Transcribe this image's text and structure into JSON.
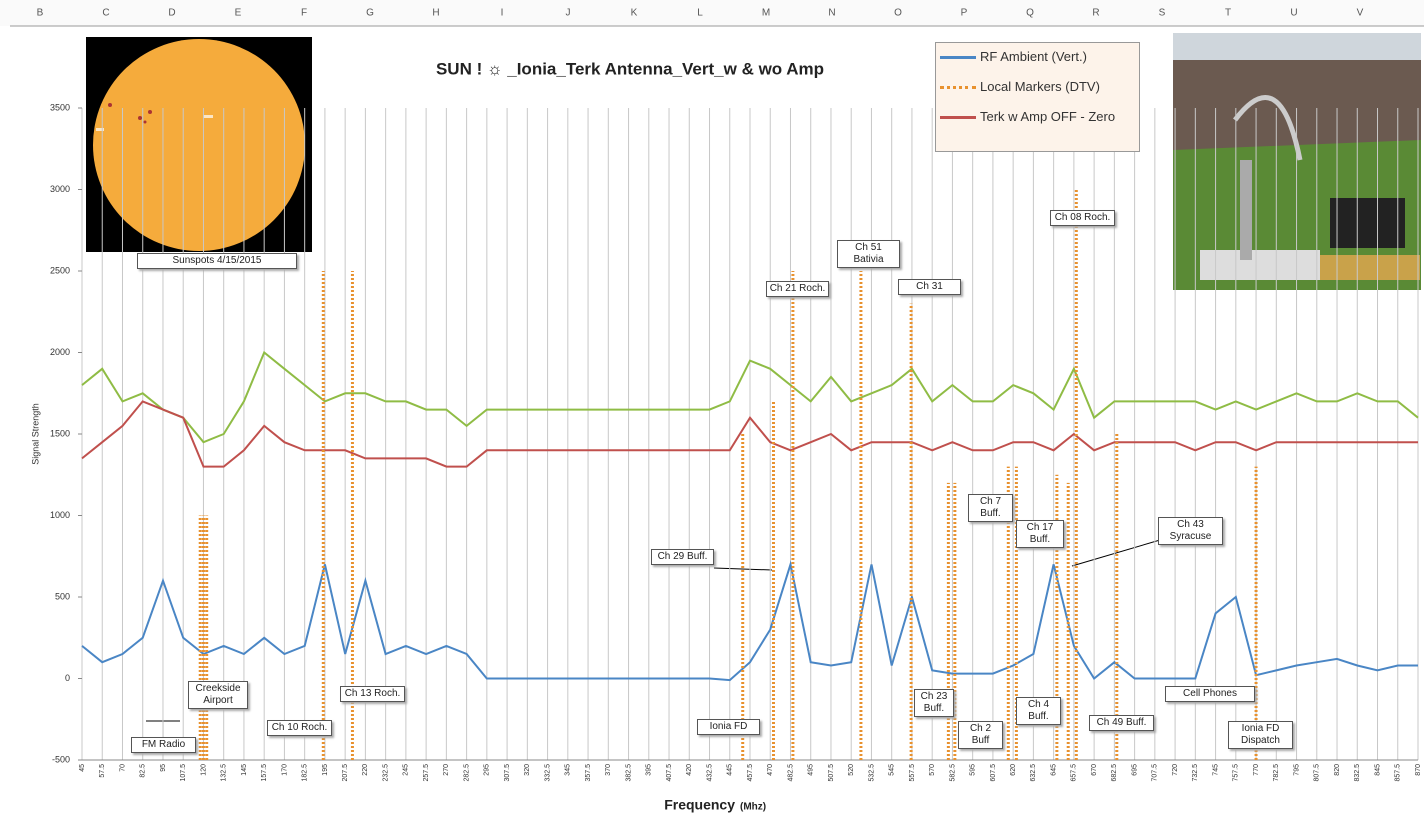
{
  "columns": [
    "B",
    "C",
    "D",
    "E",
    "F",
    "G",
    "H",
    "I",
    "J",
    "K",
    "L",
    "M",
    "N",
    "O",
    "P",
    "Q",
    "R",
    "S",
    "T",
    "U",
    "V"
  ],
  "chart_data": {
    "type": "line",
    "title": "SUN ! ☼ _Ionia_Terk Antenna_Vert_w & wo Amp",
    "ylabel": "Signal Strength",
    "xlabel": "Frequency",
    "xlabel_unit": "(Mhz)",
    "xlim": [
      45,
      870
    ],
    "ylim": [
      -500,
      3500
    ],
    "yticks": [
      -500,
      0,
      500,
      1000,
      1500,
      2000,
      2500,
      3000,
      3500
    ],
    "xticks": [
      45,
      57.5,
      70,
      82.5,
      95,
      107.5,
      120,
      132.5,
      145,
      157.5,
      170,
      182.5,
      195,
      207.5,
      220,
      232.5,
      245,
      257.5,
      270,
      282.5,
      295,
      307.5,
      320,
      332.5,
      345,
      357.5,
      370,
      382.5,
      395,
      407.5,
      420,
      432.5,
      445,
      457.5,
      470,
      482.5,
      495,
      507.5,
      520,
      532.5,
      545,
      557.5,
      570,
      582.5,
      595,
      607.5,
      620,
      632.5,
      645,
      657.5,
      670,
      682.5,
      695,
      707.5,
      720,
      732.5,
      745,
      757.5,
      770,
      782.5,
      795,
      807.5,
      820,
      832.5,
      845,
      857.5,
      870
    ],
    "grid": "x",
    "x": [
      45,
      57.5,
      70,
      82.5,
      95,
      107.5,
      120,
      132.5,
      145,
      157.5,
      170,
      182.5,
      195,
      207.5,
      220,
      232.5,
      245,
      257.5,
      270,
      282.5,
      295,
      307.5,
      320,
      332.5,
      345,
      357.5,
      370,
      382.5,
      395,
      407.5,
      420,
      432.5,
      445,
      457.5,
      470,
      482.5,
      495,
      507.5,
      520,
      532.5,
      545,
      557.5,
      570,
      582.5,
      595,
      607.5,
      620,
      632.5,
      645,
      657.5,
      670,
      682.5,
      695,
      707.5,
      720,
      732.5,
      745,
      757.5,
      770,
      782.5,
      795,
      807.5,
      820,
      832.5,
      845,
      857.5,
      870
    ],
    "series": [
      {
        "name": "RF Ambient (Vert.)",
        "color": "#4a86c5",
        "values": [
          200,
          100,
          150,
          250,
          600,
          250,
          150,
          200,
          150,
          250,
          150,
          200,
          700,
          150,
          600,
          150,
          200,
          150,
          200,
          150,
          0,
          0,
          0,
          0,
          0,
          0,
          0,
          0,
          0,
          0,
          0,
          0,
          -10,
          100,
          300,
          700,
          100,
          80,
          100,
          700,
          80,
          500,
          50,
          30,
          30,
          30,
          80,
          150,
          700,
          200,
          0,
          100,
          0,
          0,
          0,
          0,
          400,
          500,
          20,
          50,
          80,
          100,
          120,
          80,
          50,
          80,
          80
        ]
      },
      {
        "name": "Local Markers (DTV)",
        "color": "#e8912e",
        "dashed": true,
        "x": [
          118,
          120,
          122,
          194,
          212,
          453,
          472,
          484,
          526,
          557,
          580,
          584,
          617,
          622,
          647,
          654,
          659,
          684,
          770
        ],
        "values": [
          1000,
          1000,
          1000,
          2500,
          2500,
          1500,
          1700,
          2500,
          2500,
          2300,
          1200,
          1200,
          1300,
          1300,
          1250,
          1200,
          3000,
          1500,
          1300
        ]
      },
      {
        "name": "Terk w Amp OFF - Zero",
        "color": "#c0504d",
        "values": [
          1350,
          1450,
          1550,
          1700,
          1650,
          1600,
          1300,
          1300,
          1400,
          1550,
          1450,
          1400,
          1400,
          1400,
          1350,
          1350,
          1350,
          1350,
          1300,
          1300,
          1400,
          1400,
          1400,
          1400,
          1400,
          1400,
          1400,
          1400,
          1400,
          1400,
          1400,
          1400,
          1400,
          1600,
          1450,
          1400,
          1450,
          1500,
          1400,
          1450,
          1450,
          1450,
          1400,
          1450,
          1400,
          1400,
          1450,
          1450,
          1400,
          1500,
          1400,
          1450,
          1450,
          1450,
          1450,
          1400,
          1450,
          1450,
          1400,
          1450,
          1450,
          1450,
          1450,
          1450,
          1450,
          1450,
          1450
        ]
      },
      {
        "color": "#8fbc45",
        "values": [
          1800,
          1900,
          1700,
          1750,
          1650,
          1600,
          1450,
          1500,
          1700,
          2000,
          1900,
          1800,
          1700,
          1750,
          1750,
          1700,
          1700,
          1650,
          1650,
          1550,
          1650,
          1650,
          1650,
          1650,
          1650,
          1650,
          1650,
          1650,
          1650,
          1650,
          1650,
          1650,
          1700,
          1950,
          1900,
          1800,
          1700,
          1850,
          1700,
          1750,
          1800,
          1900,
          1700,
          1800,
          1700,
          1700,
          1800,
          1750,
          1650,
          1900,
          1600,
          1700,
          1700,
          1700,
          1700,
          1700,
          1650,
          1700,
          1650,
          1700,
          1750,
          1700,
          1700,
          1750,
          1700,
          1700,
          1600
        ]
      }
    ],
    "annotations": [
      "Sunspots 4/15/2015",
      "FM Radio",
      "Creekside Airport",
      "Ch 10 Roch.",
      "Ch 13 Roch.",
      "Ch 29 Buff.",
      "Ionia FD",
      "Ch 21 Roch.",
      "Ch 51 Bativia",
      "Ch 31",
      "Ch 23 Buff.",
      "Ch 2 Buff",
      "Ch 7 Buff.",
      "Ch 4 Buff.",
      "Ch 17 Buff.",
      "Ch 08 Roch.",
      "Ch 43 Syracuse",
      "Ch 49 Buff.",
      "Cell Phones",
      "Ionia FD Dispatch"
    ]
  }
}
